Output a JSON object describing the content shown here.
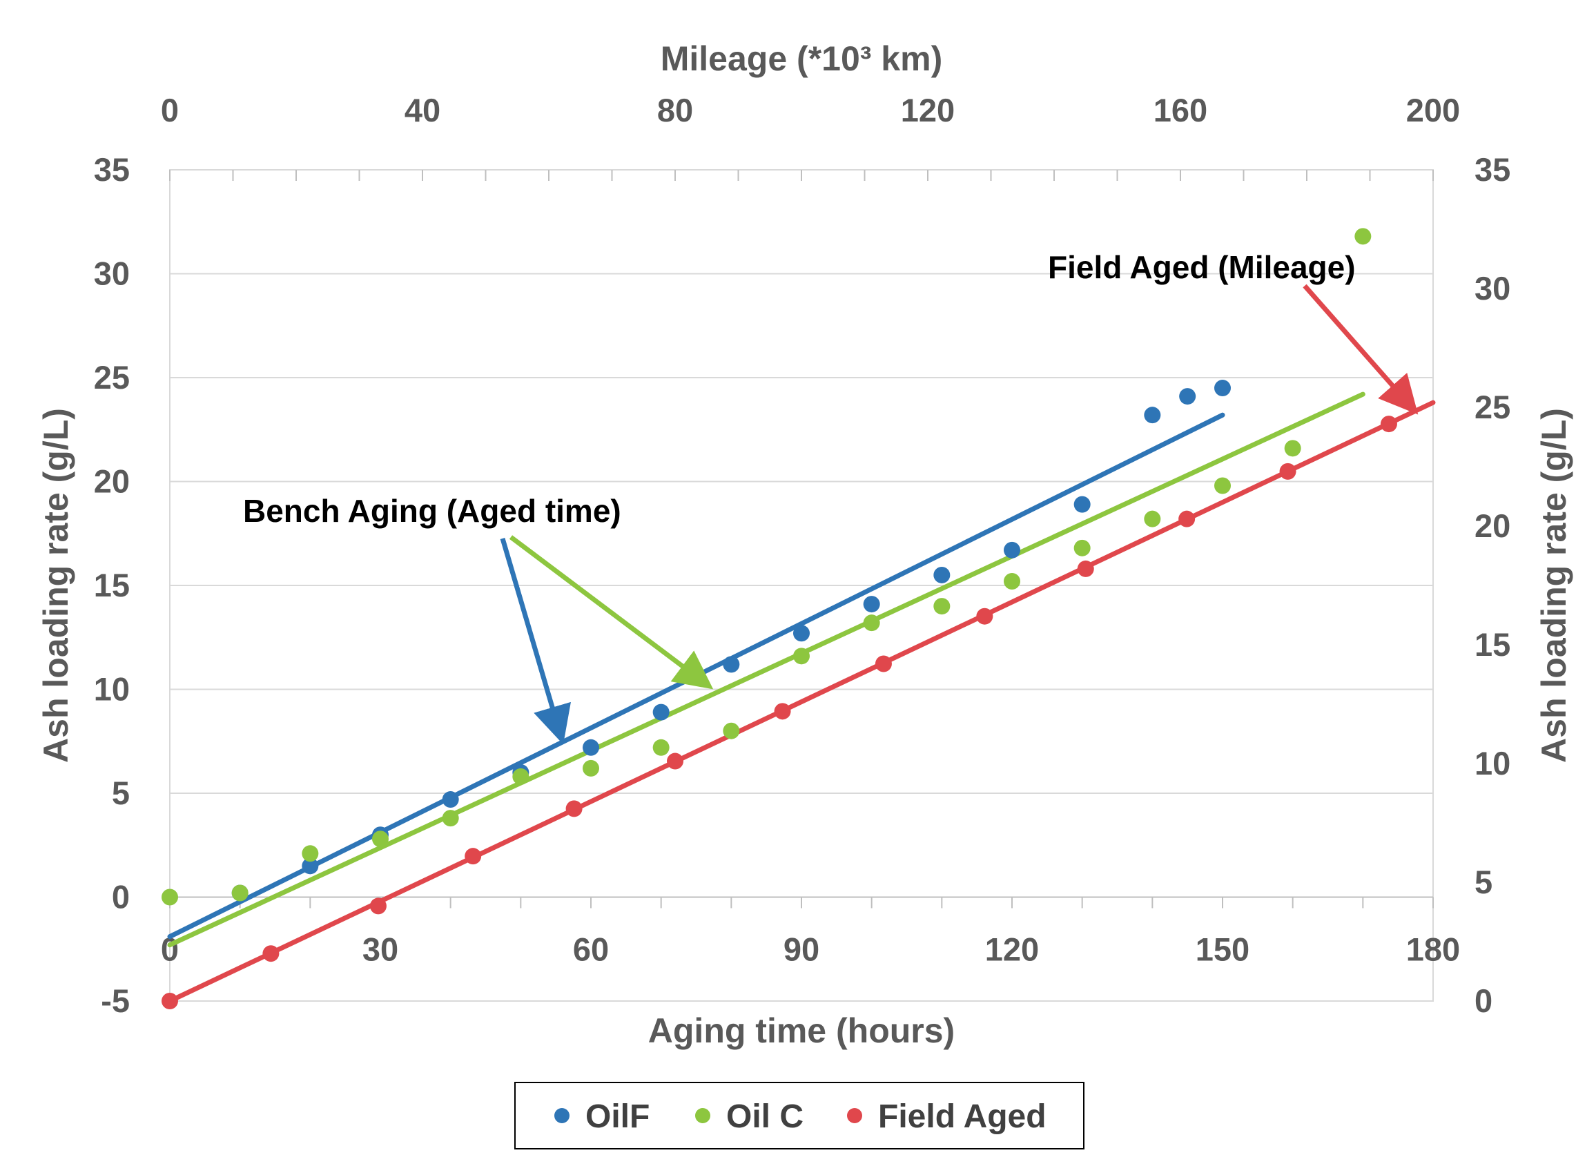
{
  "chart_data": {
    "type": "scatter",
    "top_axis": {
      "label": "Mileage (*10³ km)",
      "range": [
        0,
        200
      ],
      "ticks": [
        "0",
        "40",
        "80",
        "120",
        "160",
        "200"
      ]
    },
    "bottom_axis": {
      "label": "Aging time (hours)",
      "range": [
        0,
        180
      ],
      "ticks": [
        "0",
        "30",
        "60",
        "90",
        "120",
        "150",
        "180"
      ]
    },
    "left_axis": {
      "label": "Ash loading rate (g/L)",
      "range": [
        -5,
        35
      ],
      "ticks": [
        "-5",
        "0",
        "5",
        "10",
        "15",
        "20",
        "25",
        "30",
        "35"
      ]
    },
    "right_axis": {
      "label": "Ash loading rate (g/L)",
      "range": [
        0,
        35
      ],
      "ticks": [
        "0",
        "5",
        "10",
        "15",
        "20",
        "25",
        "30",
        "35"
      ]
    },
    "grid": "horizontal",
    "legend_position": "bottom",
    "series": [
      {
        "name": "OilF",
        "color": "#2E75B6",
        "axes": "bottom-left",
        "x": [
          10,
          20,
          30,
          40,
          50,
          60,
          70,
          80,
          90,
          100,
          110,
          120,
          130,
          140,
          145,
          150
        ],
        "y": [
          0.2,
          1.5,
          3.0,
          4.7,
          6.0,
          7.2,
          8.9,
          11.2,
          12.7,
          14.1,
          15.5,
          16.7,
          18.9,
          23.2,
          24.1,
          24.5
        ],
        "trend": {
          "x": [
            0,
            150
          ],
          "y": [
            -1.9,
            23.2
          ]
        }
      },
      {
        "name": "Oil C",
        "color": "#8DC63F",
        "axes": "bottom-left",
        "x": [
          0,
          10,
          20,
          30,
          40,
          50,
          60,
          70,
          80,
          90,
          100,
          110,
          120,
          130,
          140,
          150,
          160,
          170
        ],
        "y": [
          0.0,
          0.2,
          2.1,
          2.8,
          3.8,
          5.8,
          6.2,
          7.2,
          8.0,
          11.6,
          13.2,
          14.0,
          15.2,
          16.8,
          18.2,
          19.8,
          21.6,
          31.8
        ],
        "trend": {
          "x": [
            0,
            170
          ],
          "y": [
            -2.3,
            24.2
          ]
        }
      },
      {
        "name": "Field Aged",
        "color": "#E0474C",
        "axes": "top-right",
        "x": [
          0,
          16,
          33,
          48,
          64,
          80,
          97,
          113,
          129,
          145,
          161,
          177,
          193
        ],
        "y": [
          0.0,
          2.0,
          4.0,
          6.1,
          8.1,
          10.1,
          12.2,
          14.2,
          16.2,
          18.2,
          20.3,
          22.3,
          24.3
        ],
        "trend": {
          "x": [
            0,
            200
          ],
          "y": [
            0.0,
            25.2
          ]
        }
      }
    ],
    "annotations": [
      {
        "text": "Bench Aging (Aged time)"
      },
      {
        "text": "Field Aged (Mileage)"
      }
    ],
    "legend": [
      "OilF",
      "Oil C",
      "Field Aged"
    ]
  }
}
